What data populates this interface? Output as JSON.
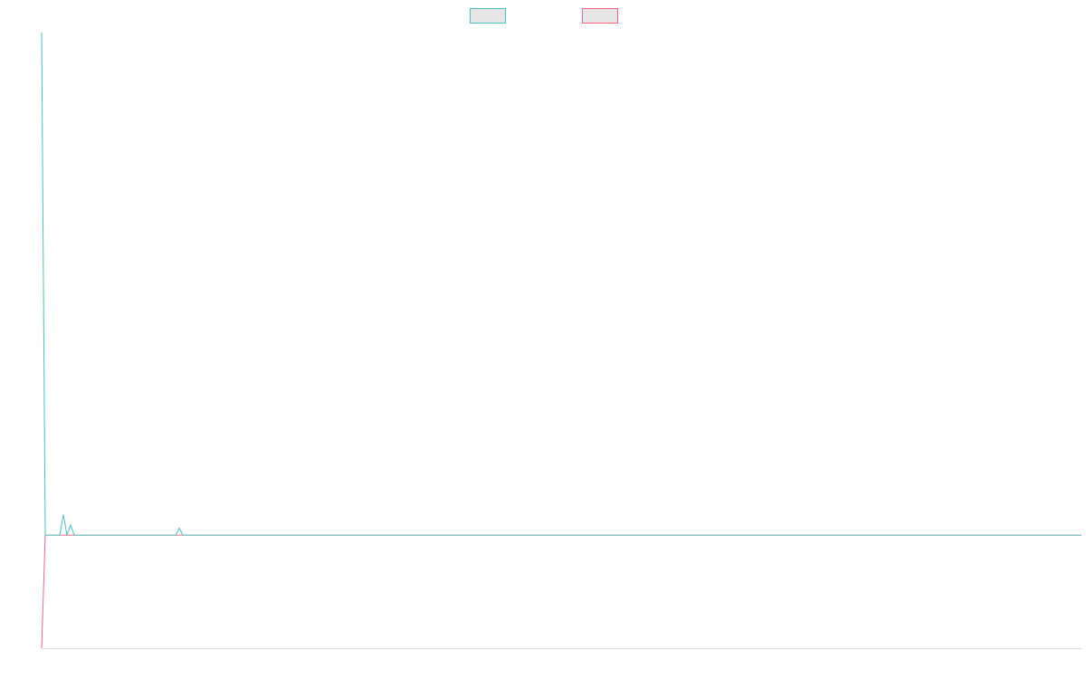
{
  "chart_data": {
    "type": "line",
    "series": [
      {
        "color": "#4bc0c0",
        "x": [
          0,
          1,
          5,
          6,
          7,
          8,
          9,
          37,
          38,
          39,
          287
        ],
        "values": [
          100,
          0,
          0,
          4.1,
          0,
          2,
          0,
          0,
          1.4,
          0,
          0
        ]
      },
      {
        "color": "#ff6384",
        "x": [
          0,
          1,
          287
        ],
        "values": [
          -22.5,
          0,
          0
        ]
      }
    ],
    "xlim": [
      0,
      287
    ],
    "ylim": [
      -22.5,
      100
    ],
    "grid": false,
    "legend": "top"
  }
}
